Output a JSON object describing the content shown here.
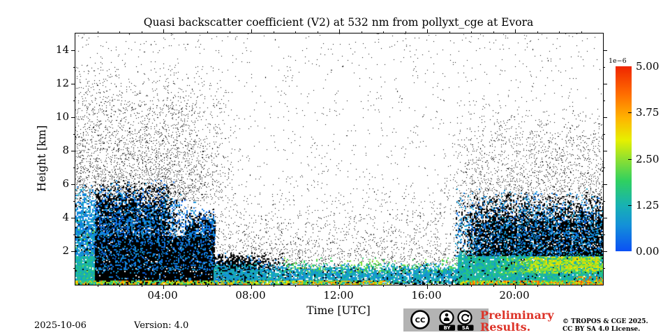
{
  "chart_data": {
    "type": "heatmap",
    "title": "Quasi backscatter coefficient (V2) at 532 nm from pollyxt_cge at Evora",
    "xlabel": "Time [UTC]",
    "ylabel": "Height [km]",
    "xlim_hours": [
      0,
      24
    ],
    "ylim_km": [
      0,
      15
    ],
    "x_ticks": [
      {
        "hour": 4,
        "label": "04:00"
      },
      {
        "hour": 8,
        "label": "08:00"
      },
      {
        "hour": 12,
        "label": "12:00"
      },
      {
        "hour": 16,
        "label": "16:00"
      },
      {
        "hour": 20,
        "label": "20:00"
      }
    ],
    "x_minor_step_hours": 1,
    "y_ticks": [
      {
        "km": 2,
        "label": "2"
      },
      {
        "km": 4,
        "label": "4"
      },
      {
        "km": 6,
        "label": "6"
      },
      {
        "km": 8,
        "label": "8"
      },
      {
        "km": 10,
        "label": "10"
      },
      {
        "km": 12,
        "label": "12"
      },
      {
        "km": 14,
        "label": "14"
      }
    ],
    "y_minor_step_km": 1,
    "colorbar": {
      "scale_label": "1e−6",
      "tick_labels": [
        "5.00",
        "3.75",
        "2.50",
        "1.25",
        "0.00"
      ],
      "tick_values": [
        5.0,
        3.75,
        2.5,
        1.25,
        0.0
      ],
      "value_range": [
        0.0,
        5.0
      ],
      "colormap": "jet-like",
      "stops": [
        {
          "u": 0.0,
          "c": "#0b50f5"
        },
        {
          "u": 0.14,
          "c": "#1490d8"
        },
        {
          "u": 0.25,
          "c": "#18b2b2"
        },
        {
          "u": 0.38,
          "c": "#2fd060"
        },
        {
          "u": 0.5,
          "c": "#90e030"
        },
        {
          "u": 0.6,
          "c": "#e6f000"
        },
        {
          "u": 0.72,
          "c": "#ffb400"
        },
        {
          "u": 0.85,
          "c": "#ff6d00"
        },
        {
          "u": 1.0,
          "c": "#ef2500"
        }
      ]
    },
    "features": [
      {
        "name": "noise-high-altitude",
        "t": [
          0,
          24
        ],
        "h": [
          0,
          15
        ],
        "density": 0.007,
        "black": 1,
        "dot": 1
      },
      {
        "name": "noise-low-gradient",
        "t": [
          0,
          24
        ],
        "h": [
          0,
          6.5
        ],
        "density": 0.045,
        "black": 1,
        "dot": 1,
        "fade": {
          "top": 1
        }
      },
      {
        "name": "noise-left-plume",
        "t": [
          0,
          7.2
        ],
        "h": [
          5,
          13.5
        ],
        "density": 0.12,
        "black": 1,
        "dot": 1,
        "fade": {
          "top": 0.85,
          "right": 0.3
        }
      },
      {
        "name": "noise-right-plume",
        "t": [
          16.6,
          24
        ],
        "h": [
          4.5,
          11
        ],
        "density": 0.09,
        "black": 1,
        "dot": 1,
        "fade": {
          "top": 0.85,
          "left": 0.25
        }
      },
      {
        "name": "noise-midday-low",
        "t": [
          9.8,
          18
        ],
        "h": [
          1.2,
          3.2
        ],
        "density": 0.035,
        "black": 1,
        "dot": 1,
        "fade": {
          "top": 0.6
        }
      },
      {
        "name": "noise-wedge-halo",
        "t": [
          5.8,
          10.6
        ],
        "h": [
          0.8,
          4.6
        ],
        "density": 0.05,
        "black": 1,
        "dot": 1,
        "fade": {
          "top": 0.7,
          "right": 0.5
        }
      },
      {
        "name": "left-column-low",
        "t": [
          0,
          0.95
        ],
        "h": [
          0,
          1.7
        ],
        "density": 0.98,
        "black": 0.02,
        "v": [
          0.8,
          1.7
        ],
        "dot": 2
      },
      {
        "name": "left-column-upper",
        "t": [
          0,
          0.95
        ],
        "h": [
          1.7,
          6.2
        ],
        "density": 0.82,
        "black": 0.12,
        "v": [
          0.3,
          1.2
        ],
        "dot": 2,
        "fade": {
          "top": 0.55
        }
      },
      {
        "name": "left-column-green-flecks",
        "t": [
          0,
          1.0
        ],
        "h": [
          0.2,
          4.5
        ],
        "density": 0.05,
        "black": 0,
        "v": [
          1.8,
          2.6
        ],
        "dot": 2,
        "fade": {
          "top": 0.4
        }
      },
      {
        "name": "morning-dark-core",
        "t": [
          0.9,
          6.35
        ],
        "h": [
          0,
          2.9
        ],
        "density": 0.97,
        "black": 0.88,
        "v": [
          0.2,
          0.9
        ],
        "dot": 2
      },
      {
        "name": "morning-dark-upper",
        "t": [
          0.9,
          5.0
        ],
        "h": [
          2.9,
          6.4
        ],
        "density": 0.9,
        "black": 0.62,
        "v": [
          0.1,
          0.9
        ],
        "dot": 2,
        "fade": {
          "top": 0.5,
          "right": 0.25
        }
      },
      {
        "name": "morning-dark-upper-b",
        "t": [
          5.0,
          6.35
        ],
        "h": [
          2.9,
          4.7
        ],
        "density": 0.85,
        "black": 0.65,
        "v": [
          0.1,
          0.8
        ],
        "dot": 2,
        "fade": {
          "top": 0.6
        }
      },
      {
        "name": "morning-blue-speckle",
        "t": [
          0.95,
          6.35
        ],
        "h": [
          0.9,
          5.2
        ],
        "density": 0.22,
        "black": 0,
        "v": [
          0.2,
          0.9
        ],
        "dot": 2,
        "fade": {
          "top": 0.5
        }
      },
      {
        "name": "dark-wedge",
        "t": [
          6.3,
          9.8
        ],
        "h": [
          0,
          2.0
        ],
        "density": 0.92,
        "black": 0.82,
        "v": [
          0.2,
          0.9
        ],
        "dot": 2,
        "fade": {
          "top": 0.35,
          "right": 0.55
        }
      },
      {
        "name": "boundary-layer-day",
        "t": [
          6.3,
          17.6
        ],
        "h": [
          0.05,
          1.35
        ],
        "density": 0.85,
        "black": 0.08,
        "v": [
          0.5,
          1.5
        ],
        "dot": 2,
        "fade": {
          "top": 0.4
        }
      },
      {
        "name": "boundary-layer-green-flecks",
        "t": [
          9.5,
          17.6
        ],
        "h": [
          0.7,
          1.7
        ],
        "density": 0.16,
        "black": 0,
        "v": [
          1.7,
          2.6
        ],
        "dot": 2,
        "fade": {
          "top": 0.5
        }
      },
      {
        "name": "evening-low-layer",
        "t": [
          17.4,
          24
        ],
        "h": [
          0,
          2.2
        ],
        "density": 0.95,
        "black": 0.04,
        "v": [
          0.8,
          1.9
        ],
        "dot": 2,
        "fade": {
          "top": 0.25
        }
      },
      {
        "name": "evening-green-band",
        "t": [
          19,
          24
        ],
        "h": [
          0.7,
          1.8
        ],
        "density": 0.5,
        "black": 0,
        "v": [
          1.9,
          3.0
        ],
        "dot": 2,
        "fade": {
          "top": 0.3,
          "left": 0.3
        }
      },
      {
        "name": "evening-green-band-core",
        "t": [
          20.7,
          23.8
        ],
        "h": [
          0.85,
          1.65
        ],
        "density": 0.6,
        "black": 0,
        "v": [
          2.3,
          3.5
        ],
        "dot": 2
      },
      {
        "name": "evening-dark-cloud",
        "t": [
          17.2,
          24
        ],
        "h": [
          1.7,
          5.6
        ],
        "density": 0.88,
        "black": 0.78,
        "v": [
          0.2,
          1.0
        ],
        "dot": 2,
        "fade": {
          "top": 0.5,
          "left": 0.18
        }
      },
      {
        "name": "evening-cloud-blue-speckle",
        "t": [
          17.3,
          24
        ],
        "h": [
          1.7,
          5.8
        ],
        "density": 0.18,
        "black": 0,
        "v": [
          0.3,
          1.0
        ],
        "dot": 2,
        "fade": {
          "top": 0.55
        }
      },
      {
        "name": "surface-band-morning",
        "t": [
          0,
          14.2
        ],
        "h": [
          0,
          0.22
        ],
        "density": 0.8,
        "black": 0.08,
        "v": [
          1.3,
          4.2
        ],
        "dot": 2
      },
      {
        "name": "surface-band-gap",
        "t": [
          14.2,
          17.5
        ],
        "h": [
          0,
          0.18
        ],
        "density": 0.35,
        "black": 0.75,
        "v": [
          1.5,
          3.5
        ],
        "dot": 2
      },
      {
        "name": "surface-band-evening",
        "t": [
          17.5,
          24
        ],
        "h": [
          0,
          0.25
        ],
        "density": 0.85,
        "black": 0.05,
        "v": [
          1.5,
          4.6
        ],
        "dot": 2
      },
      {
        "name": "right-corner-orange",
        "t": [
          22.8,
          24
        ],
        "h": [
          0,
          0.5
        ],
        "density": 0.3,
        "black": 0,
        "v": [
          3.0,
          4.8
        ],
        "dot": 2
      }
    ]
  },
  "footer": {
    "date": "2025-10-06",
    "version": "Version: 4.0",
    "preliminary_line1": "Preliminary",
    "preliminary_line2": "Results.",
    "preliminary_color": "#dd3328",
    "copyright_line1": "© TROPOS & CGE 2025.",
    "copyright_line2": "CC BY SA 4.0 License.",
    "badge": {
      "cc": "CC",
      "by": "BY",
      "sa": "SA"
    }
  }
}
